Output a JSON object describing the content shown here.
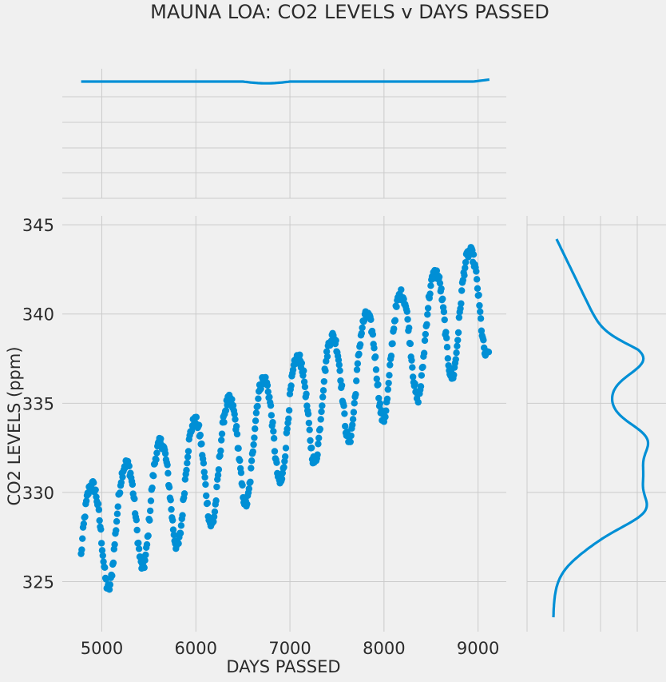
{
  "chart_data": {
    "type": "scatter",
    "title": "MAUNA LOA: CO2 LEVELS v DAYS PASSED",
    "xlabel": "DAYS PASSED",
    "ylabel": "CO2 LEVELS (ppm)",
    "xlim": [
      4580,
      9300
    ],
    "ylim": [
      322.2,
      345.5
    ],
    "xticks": [
      5000,
      6000,
      7000,
      8000,
      9000
    ],
    "yticks": [
      325,
      330,
      335,
      340,
      345
    ],
    "grid": true,
    "legend": "none",
    "series_color": "#008fd5",
    "background": "#f0f0f0",
    "grid_color": "#cbcbcb",
    "scatter": {
      "x_start": 4780,
      "x_step": 7,
      "count": 620,
      "trend": {
        "start": 327.2,
        "rate_per_day": 0.00325
      },
      "seasonal": {
        "amplitude": 3.2,
        "period_days": 365.25,
        "phase_peak_day": 4890,
        "noise": 0.3
      }
    },
    "marginals": {
      "x_kde": "flat",
      "y_kde_peaks_ppm": [
        337.5,
        333.0,
        329.0
      ]
    }
  }
}
